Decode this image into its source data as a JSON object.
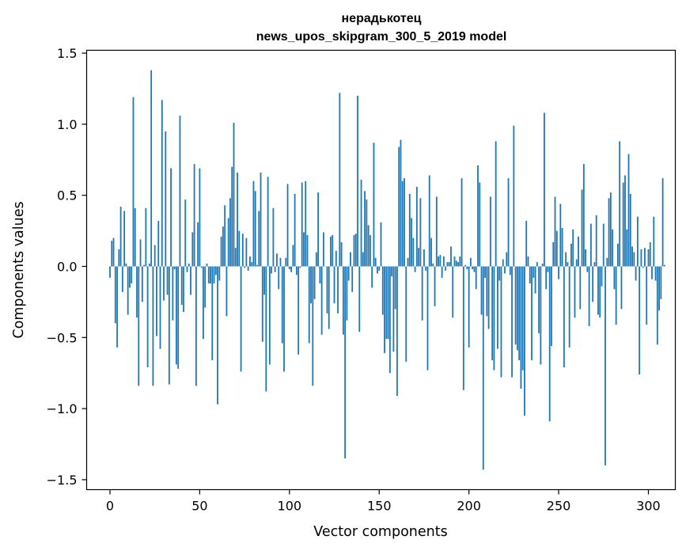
{
  "chart_data": {
    "type": "bar",
    "title": "нерадькотец",
    "subtitle": "news_upos_skipgram_300_5_2019 model",
    "xlabel": "Vector components",
    "ylabel": "Components values",
    "xlim": [
      -13,
      315
    ],
    "ylim": [
      -1.57,
      1.52
    ],
    "x_ticks": [
      0,
      50,
      100,
      150,
      200,
      250,
      300
    ],
    "y_ticks": [
      -1.5,
      -1.0,
      -0.5,
      0.0,
      0.5,
      1.0,
      1.5
    ],
    "y_tick_labels": [
      "−1.5",
      "−1.0",
      "−0.5",
      "0.0",
      "0.5",
      "1.0",
      "1.5"
    ],
    "bar_color": "#1f77b4",
    "grid": false,
    "legend": "none",
    "values": [
      -0.08,
      0.18,
      0.2,
      -0.4,
      -0.57,
      0.12,
      0.42,
      -0.18,
      0.39,
      0.02,
      -0.34,
      -0.15,
      -0.12,
      1.19,
      0.41,
      -0.36,
      -0.84,
      0.19,
      -0.25,
      0.01,
      0.41,
      -0.71,
      0.02,
      1.38,
      -0.84,
      0.15,
      -0.49,
      0.32,
      -0.58,
      1.17,
      -0.24,
      0.95,
      -0.2,
      -0.83,
      0.69,
      -0.38,
      -0.02,
      -0.69,
      -0.72,
      1.06,
      -0.27,
      -0.32,
      0.47,
      -0.04,
      0.02,
      -0.2,
      0.24,
      0.72,
      -0.84,
      0.31,
      0.69,
      -0.01,
      -0.51,
      -0.29,
      0.02,
      -0.12,
      -0.12,
      -0.66,
      -0.12,
      -0.06,
      -0.97,
      -0.1,
      0.21,
      0.28,
      0.43,
      -0.35,
      0.34,
      0.48,
      0.7,
      1.01,
      0.13,
      0.66,
      0.25,
      -0.74,
      0.23,
      -0.01,
      0.2,
      -0.03,
      0.07,
      0.03,
      0.6,
      0.53,
      0.01,
      0.39,
      0.66,
      -0.53,
      -0.2,
      -0.88,
      0.63,
      -0.69,
      -0.05,
      0.41,
      -0.04,
      0.09,
      -0.16,
      0.06,
      -0.54,
      -0.74,
      0.06,
      0.58,
      -0.02,
      -0.04,
      0.15,
      0.51,
      -0.06,
      -0.62,
      -0.01,
      0.59,
      0.24,
      0.6,
      0.22,
      -0.54,
      -0.26,
      -0.84,
      -0.23,
      0.1,
      0.52,
      -0.12,
      -0.48,
      0.24,
      0.0,
      -0.33,
      -0.44,
      0.21,
      0.22,
      -0.26,
      0.11,
      -0.33,
      1.22,
      0.17,
      -0.48,
      -1.35,
      -0.38,
      -0.1,
      0.1,
      -0.18,
      0.22,
      0.23,
      1.2,
      -0.46,
      0.61,
      0.1,
      0.53,
      0.47,
      0.29,
      0.22,
      -0.15,
      0.87,
      0.06,
      -0.05,
      -0.03,
      0.31,
      -0.34,
      -0.61,
      -0.51,
      -0.51,
      -0.75,
      -0.07,
      -0.6,
      -0.3,
      -0.91,
      0.84,
      0.89,
      0.6,
      0.62,
      -0.67,
      0.06,
      0.51,
      0.34,
      0.2,
      -0.04,
      0.56,
      0.13,
      0.48,
      -0.38,
      0.12,
      -0.03,
      -0.73,
      0.64,
      0.2,
      0.02,
      -0.28,
      0.49,
      0.07,
      0.08,
      -0.08,
      0.07,
      -0.03,
      0.03,
      0.03,
      0.14,
      -0.36,
      0.07,
      0.04,
      0.03,
      0.07,
      0.62,
      -0.87,
      0.01,
      -0.02,
      -0.57,
      0.06,
      -0.02,
      -0.04,
      -0.16,
      0.71,
      0.59,
      -0.34,
      -1.43,
      -0.08,
      -0.35,
      -0.44,
      0.49,
      -0.66,
      -0.73,
      0.88,
      -0.58,
      -0.1,
      -0.78,
      0.05,
      -0.05,
      0.1,
      0.62,
      -0.06,
      -0.78,
      0.99,
      -0.55,
      -0.59,
      -0.66,
      -0.86,
      -0.73,
      -1.05,
      0.32,
      0.07,
      -0.12,
      -0.66,
      -0.08,
      -0.19,
      0.03,
      -0.47,
      -0.69,
      0.02,
      1.08,
      -0.16,
      -0.04,
      -1.09,
      -0.56,
      0.17,
      0.49,
      0.25,
      -0.09,
      0.44,
      0.27,
      -0.71,
      0.1,
      0.03,
      -0.57,
      0.16,
      0.26,
      -0.36,
      0.05,
      0.21,
      -0.3,
      0.54,
      0.72,
      0.12,
      -0.04,
      -0.42,
      0.3,
      -0.25,
      0.03,
      0.36,
      -0.34,
      -0.36,
      -0.14,
      0.3,
      -1.4,
      0.06,
      0.48,
      0.52,
      0.26,
      -0.16,
      -0.41,
      0.16,
      0.88,
      -0.3,
      0.59,
      0.64,
      0.26,
      0.79,
      0.51,
      0.14,
      0.1,
      -0.1,
      0.35,
      -0.76,
      0.12,
      -0.01,
      0.13,
      -0.41,
      0.12,
      0.17,
      -0.09,
      0.35,
      -0.1,
      -0.55,
      -0.31,
      -0.23,
      0.62,
      0.01
    ]
  }
}
